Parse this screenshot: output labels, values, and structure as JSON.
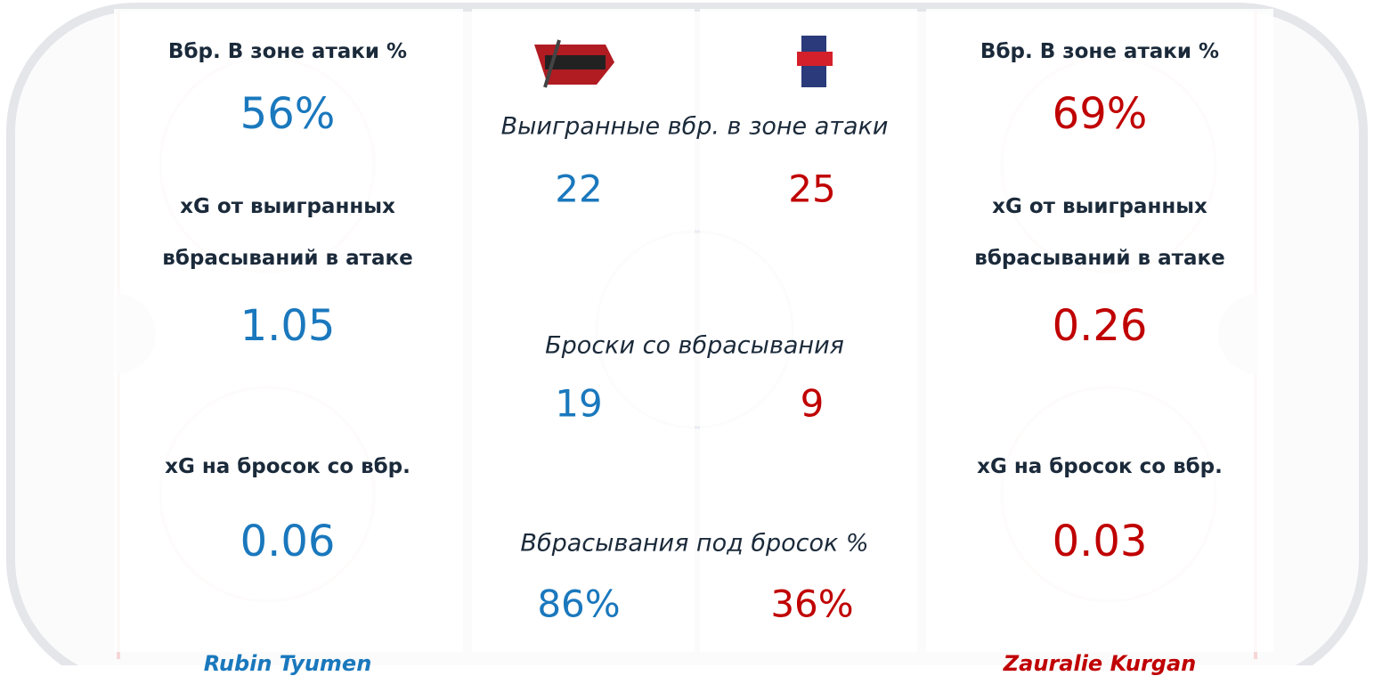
{
  "left": {
    "stats": [
      {
        "label": "Вбр. В зоне атаки %",
        "value": "56%"
      },
      {
        "label": [
          "xG от выигранных",
          "вбрасываний в атаке"
        ],
        "value": "1.05"
      },
      {
        "label": "xG на бросок со вбр.",
        "value": "0.06"
      }
    ],
    "team": "Rubin Tyumen"
  },
  "center": {
    "stats": [
      {
        "label": "Выигранные вбр. в зоне атаки",
        "home": "22",
        "away": "25"
      },
      {
        "label": "Броски со вбрасывания",
        "home": "19",
        "away": "9"
      },
      {
        "label": "Вбрасывания под бросок %",
        "home": "86%",
        "away": "36%"
      }
    ]
  },
  "right": {
    "stats": [
      {
        "label": "Вбр. В зоне атаки %",
        "value": "69%"
      },
      {
        "label": [
          "xG от выигранных",
          "вбрасываний в атаке"
        ],
        "value": "0.26"
      },
      {
        "label": "xG на бросок со вбр.",
        "value": "0.03"
      }
    ],
    "team": "Zauralie Kurgan"
  }
}
